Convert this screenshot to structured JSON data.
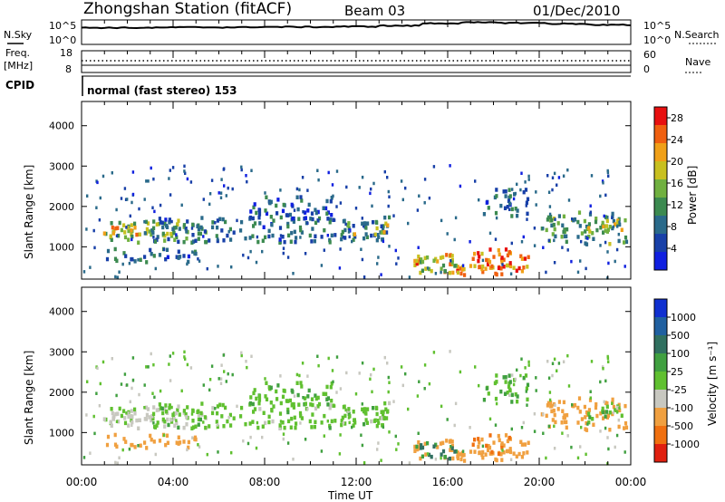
{
  "header": {
    "station": "Zhongshan Station (fitACF)",
    "beam": "Beam 03",
    "date": "01/Dec/2010"
  },
  "top_panels": {
    "nsky_label": "N.Sky",
    "nsky_ticks": [
      "10^5",
      "10^0"
    ],
    "nsearch_label": "N.Search",
    "nsearch_ticks": [
      "10^5",
      "10^0"
    ],
    "freq_label_1": "Freq.",
    "freq_label_2": "[MHz]",
    "freq_ticks": [
      "18",
      "8"
    ],
    "nave_label": "Nave",
    "nave_ticks": [
      "60",
      "0"
    ],
    "cpid_label": "CPID",
    "cpid_text": "normal (fast stereo) 153"
  },
  "time_axis": {
    "ticks": [
      "00:00",
      "04:00",
      "08:00",
      "12:00",
      "16:00",
      "20:00",
      "00:00"
    ],
    "title": "Time UT"
  },
  "range_axis": {
    "title": "Slant Range [km]",
    "ticks": [
      "1000",
      "2000",
      "3000",
      "4000"
    ]
  },
  "power_scale": {
    "title": "Power [dB]",
    "ticks": [
      "4",
      "8",
      "12",
      "16",
      "20",
      "24",
      "28"
    ],
    "colors": [
      "#1020e0",
      "#1840a8",
      "#2a6a8a",
      "#3c8a50",
      "#70b040",
      "#c8c020",
      "#f0a018",
      "#f06010",
      "#e81010"
    ]
  },
  "velocity_scale": {
    "title": "Velocity [m s⁻¹]",
    "ticks": [
      "1000",
      "500",
      "100",
      "25",
      "-25",
      "-100",
      "-500",
      "-1000"
    ],
    "colors": [
      "#1030d0",
      "#2060a0",
      "#307060",
      "#40a040",
      "#60c030",
      "#c8c8c0",
      "#f0a040",
      "#f07010",
      "#e02010"
    ]
  },
  "chart_data": {
    "type": "heatmap",
    "x_unit": "hours UT",
    "xlim": [
      0,
      24
    ],
    "ylim": [
      200,
      4600
    ],
    "power_db_range": [
      0,
      30
    ],
    "velocity_range": [
      -1000,
      1000
    ],
    "echo_regions": [
      {
        "t0": 0.8,
        "t1": 5.5,
        "r0": 1150,
        "r1": 1700,
        "power": 14,
        "velocity": -40
      },
      {
        "t0": 0.8,
        "t1": 3.0,
        "r0": 1300,
        "r1": 1550,
        "power": 22,
        "velocity": -60
      },
      {
        "t0": 1.0,
        "t1": 5.0,
        "r0": 650,
        "r1": 1000,
        "power": 8,
        "velocity": -300
      },
      {
        "t0": 3.0,
        "t1": 13.5,
        "r0": 1150,
        "r1": 1800,
        "power": 8,
        "velocity": 0
      },
      {
        "t0": 7.0,
        "t1": 11.0,
        "r0": 1700,
        "r1": 2300,
        "power": 6,
        "velocity": 10
      },
      {
        "t0": 11.5,
        "t1": 13.5,
        "r0": 1350,
        "r1": 1650,
        "power": 18,
        "velocity": 0
      },
      {
        "t0": 14.0,
        "t1": 19.5,
        "r0": 350,
        "r1": 900,
        "power": 22,
        "velocity": -350
      },
      {
        "t0": 14.5,
        "t1": 16.5,
        "r0": 400,
        "r1": 800,
        "power": 14,
        "velocity": 120
      },
      {
        "t0": 17.0,
        "t1": 18.8,
        "r0": 500,
        "r1": 1000,
        "power": 26,
        "velocity": -500
      },
      {
        "t0": 17.5,
        "t1": 19.5,
        "r0": 1800,
        "r1": 2500,
        "power": 8,
        "velocity": 20
      },
      {
        "t0": 20.0,
        "t1": 23.8,
        "r0": 1100,
        "r1": 1900,
        "power": 12,
        "velocity": -300
      },
      {
        "t0": 22.0,
        "t1": 23.8,
        "r0": 1300,
        "r1": 1700,
        "power": 18,
        "velocity": 0
      }
    ],
    "n_search_level": [
      3.5,
      3.5,
      3.6,
      3.6,
      3.7,
      3.7,
      3.8,
      4.0,
      4.6,
      4.8,
      4.7,
      4.5,
      4.2,
      4.0
    ],
    "freq_mhz": 11,
    "nave": 30
  }
}
